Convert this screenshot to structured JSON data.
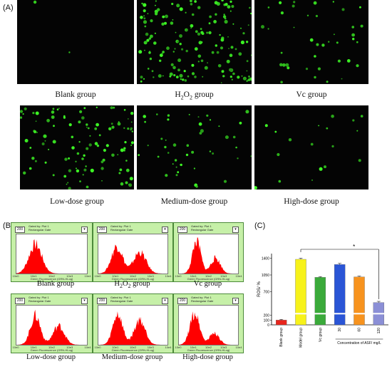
{
  "panel_labels": {
    "a": "(A)",
    "b": "(B)",
    "c": "(C)"
  },
  "microscopy": {
    "images": [
      {
        "caption_main": "Blank group",
        "density": 2
      },
      {
        "caption_main": "H",
        "caption_sub": "2",
        "caption_mid": "O",
        "caption_sub2": "2",
        "caption_end": " group",
        "density": 160
      },
      {
        "caption_main": "Vc group",
        "density": 40
      },
      {
        "caption_main": "Low-dose group",
        "density": 110
      },
      {
        "caption_main": "Medium-dose group",
        "density": 45
      },
      {
        "caption_main": "High-dose group",
        "density": 18
      }
    ]
  },
  "flow": {
    "box_value": "200",
    "gate_line1": "Gated by: Plot 1",
    "gate_line2": "Rectangular Gate",
    "btn": "▾",
    "xaxis_label": "Green Fluorescence (GRN-HLog)",
    "ticks": [
      "10e0",
      "10e1",
      "10e2",
      "10e3",
      "10e4"
    ],
    "panels": [
      {
        "caption": "Blank group",
        "peaks": [
          [
            0.27,
            0.85,
            0.09
          ],
          [
            0.0,
            0.0,
            0.1
          ]
        ]
      },
      {
        "caption_main": "H",
        "caption_sub": "2",
        "caption_mid": "O",
        "caption_sub2": "2",
        "caption_end": " group",
        "peaks": [
          [
            0.27,
            0.8,
            0.08
          ],
          [
            0.6,
            0.62,
            0.09
          ]
        ]
      },
      {
        "caption": "Vc group",
        "peaks": [
          [
            0.3,
            0.95,
            0.07
          ],
          [
            0.62,
            0.45,
            0.08
          ]
        ]
      },
      {
        "caption": "Low-dose group",
        "peaks": [
          [
            0.27,
            0.85,
            0.07
          ],
          [
            0.6,
            0.55,
            0.08
          ]
        ]
      },
      {
        "caption": "Medium-dose group",
        "peaks": [
          [
            0.28,
            0.9,
            0.07
          ],
          [
            0.6,
            0.72,
            0.08
          ]
        ]
      },
      {
        "caption": "High-dose group",
        "peaks": [
          [
            0.27,
            0.92,
            0.08
          ],
          [
            0.6,
            0.35,
            0.08
          ]
        ]
      }
    ],
    "fill_color": "#ff0000"
  },
  "chart_data": {
    "type": "bar",
    "ylabel": "ROS/ %",
    "yticks": [
      "1400",
      "1050",
      "700",
      "200",
      "100",
      "0"
    ],
    "ytick_values": [
      1400,
      1050,
      700,
      200,
      100,
      0
    ],
    "categories": [
      "Blank group",
      "Model group",
      "Vc group",
      "30",
      "60",
      "120"
    ],
    "values": [
      100,
      1380,
      1000,
      1270,
      1010,
      470
    ],
    "errors": [
      15,
      25,
      15,
      25,
      18,
      25
    ],
    "colors": [
      "#e8251d",
      "#f7f21a",
      "#3aaa3a",
      "#2a55d6",
      "#f7931e",
      "#8b8fd6"
    ],
    "xlabel_group": "Concentration of ASF/ mg/L",
    "significance": "*"
  }
}
